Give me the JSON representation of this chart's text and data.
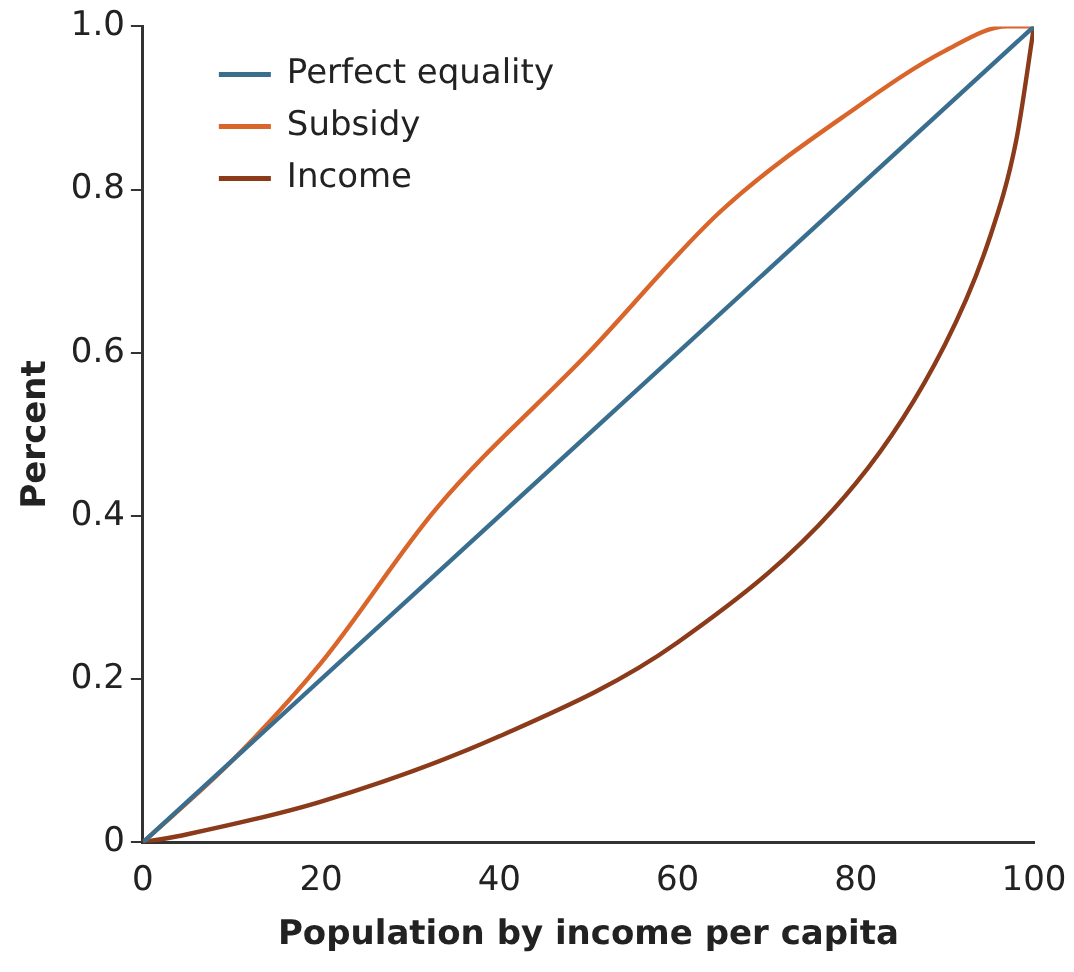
{
  "chart_data": {
    "type": "line",
    "xlabel": "Population by income per capita",
    "ylabel": "Percent",
    "xlim": [
      0,
      100
    ],
    "xticks": [
      0,
      20,
      40,
      60,
      80,
      100
    ],
    "ylim": [
      0,
      1
    ],
    "yticks": [
      {
        "value": 0,
        "label": "0"
      },
      0.2,
      0.4,
      0.6,
      0.8,
      {
        "value": 1,
        "label": "1.0"
      }
    ],
    "legend": "top left",
    "grid": false,
    "marker": "none",
    "series": [
      {
        "name": "Perfect equality",
        "color": "#3a6e8f",
        "x": [
          0,
          100
        ],
        "values": [
          0,
          1
        ]
      },
      {
        "name": "Subsidy",
        "color": "#d9652b",
        "x": [
          0,
          10,
          20,
          33,
          50,
          65,
          80,
          90,
          97,
          100
        ],
        "values": [
          0,
          0.1,
          0.22,
          0.41,
          0.6,
          0.775,
          0.9,
          0.97,
          1,
          1
        ]
      },
      {
        "name": "Income",
        "color": "#8b3a1a",
        "x": [
          0,
          5,
          20,
          40,
          60,
          80,
          90,
          95,
          98,
          100
        ],
        "values": [
          0,
          0.01,
          0.05,
          0.13,
          0.245,
          0.44,
          0.61,
          0.74,
          0.86,
          1
        ]
      }
    ]
  }
}
